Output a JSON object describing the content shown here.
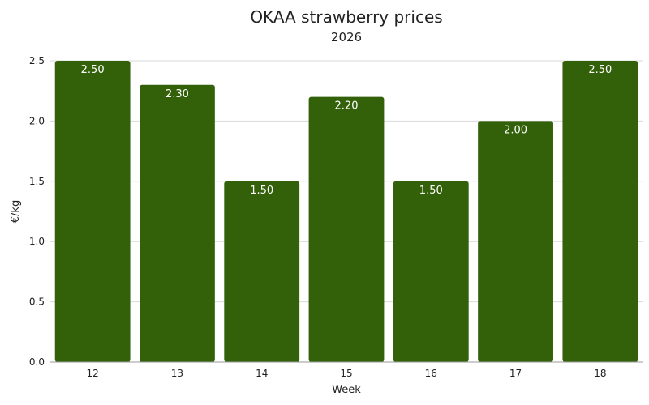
{
  "chart_data": {
    "type": "bar",
    "title": "OKAA strawberry prices",
    "subtitle": "2026",
    "xlabel": "Week",
    "ylabel": "€/kg",
    "categories": [
      "12",
      "13",
      "14",
      "15",
      "16",
      "17",
      "18"
    ],
    "values": [
      2.5,
      2.3,
      1.5,
      2.2,
      1.5,
      2.0,
      2.5
    ],
    "data_labels": [
      "2.50",
      "2.30",
      "1.50",
      "2.20",
      "1.50",
      "2.00",
      "2.50"
    ],
    "ylim": [
      0,
      2.5
    ],
    "yticks": [
      "0.0",
      "0.5",
      "1.0",
      "1.5",
      "2.0",
      "2.5"
    ],
    "grid": true,
    "legend": "none",
    "colors": {
      "bar": "#336109"
    }
  }
}
